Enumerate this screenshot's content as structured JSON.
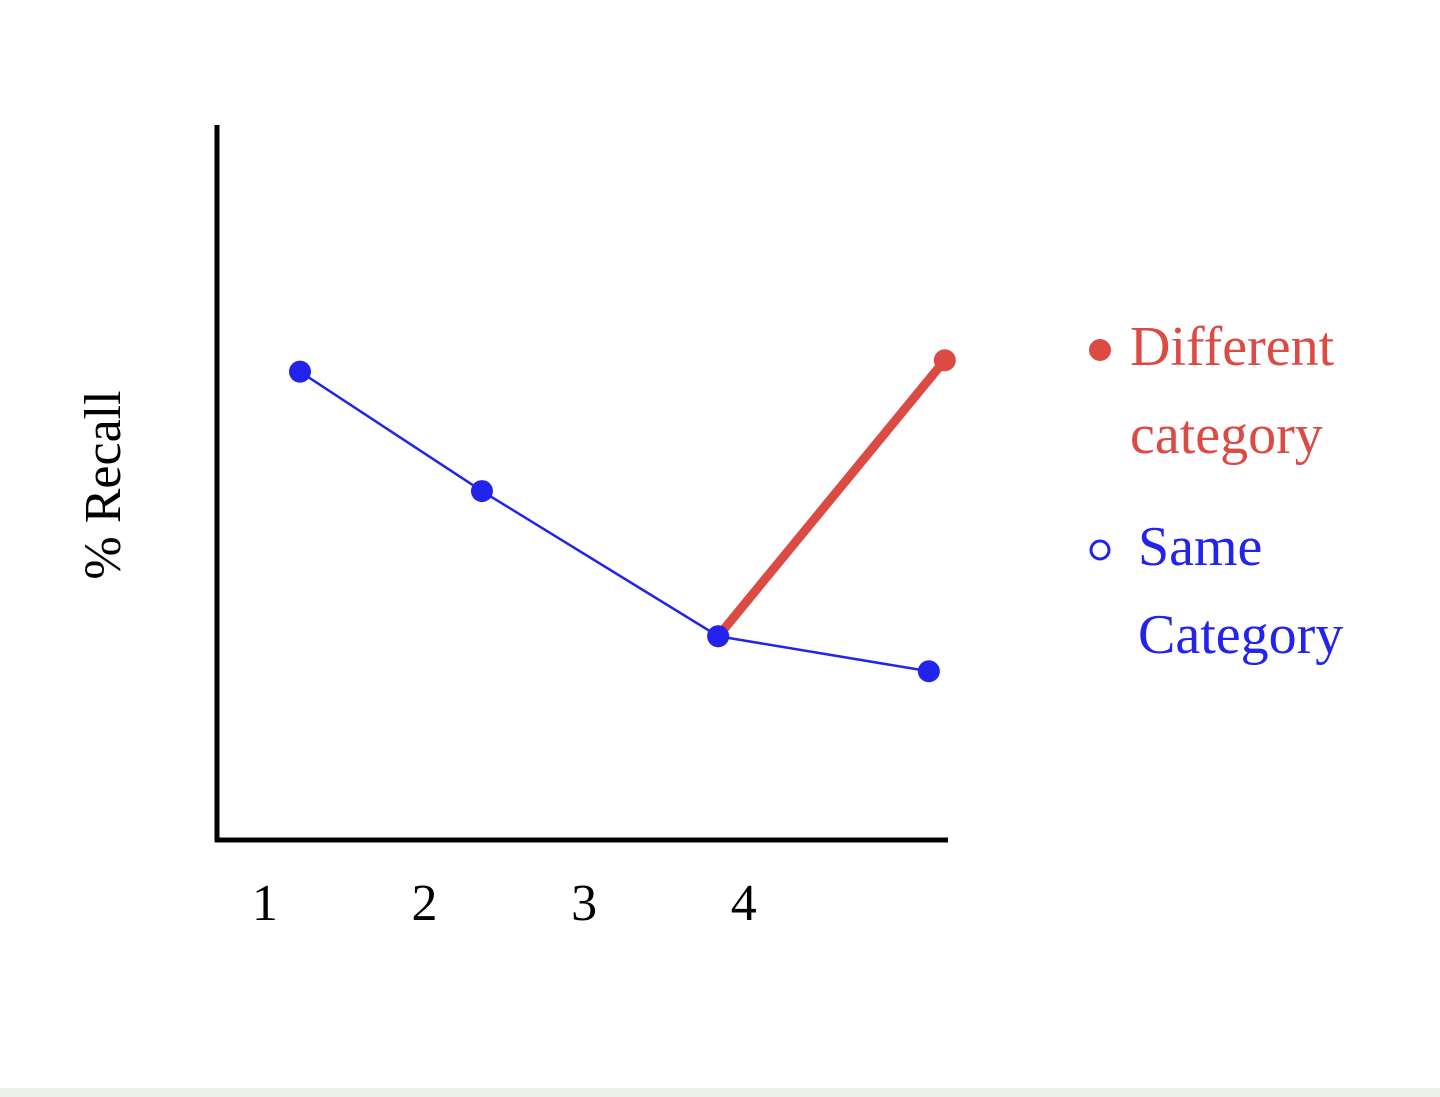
{
  "chart_data": {
    "type": "line",
    "y_label": "% Recall",
    "xlim": [
      0.7,
      5.28
    ],
    "xticks": [
      1,
      2,
      3,
      4
    ],
    "ylim": [
      0,
      100
    ],
    "series": [
      {
        "name": "Different category",
        "color": "#dc4a44",
        "marker": "filled",
        "x": [
          3.84,
          5.26
        ],
        "values": [
          28.5,
          67.1
        ]
      },
      {
        "name": "Same Category",
        "color": "#2323ee",
        "marker": "hollow",
        "x": [
          1.22,
          2.36,
          3.84,
          5.16
        ],
        "values": [
          65.5,
          48.8,
          28.5,
          23.6
        ]
      }
    ]
  }
}
